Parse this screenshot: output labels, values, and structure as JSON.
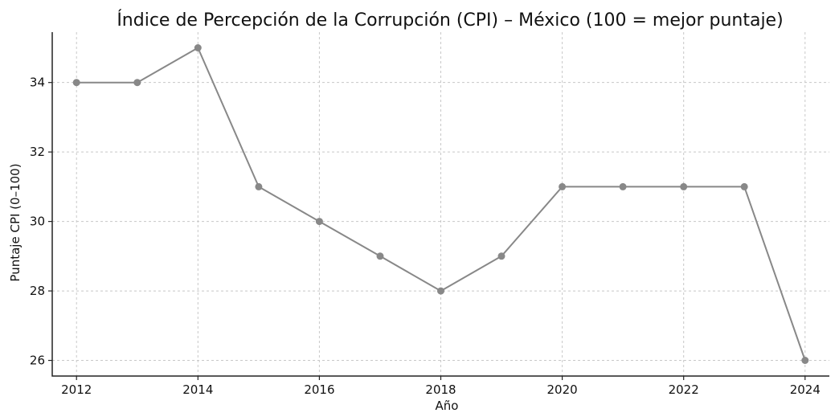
{
  "chart_data": {
    "type": "line",
    "title": "Índice de Percepción de la Corrupción (CPI) – México (100 = mejor puntaje)",
    "xlabel": "Año",
    "ylabel": "Puntaje CPI (0–100)",
    "x": [
      2012,
      2013,
      2014,
      2015,
      2016,
      2017,
      2018,
      2019,
      2020,
      2021,
      2022,
      2023,
      2024
    ],
    "series": [
      {
        "values": [
          34,
          34,
          35,
          31,
          30,
          29,
          28,
          29,
          31,
          31,
          31,
          31,
          26
        ]
      }
    ],
    "xlim": [
      2011.6,
      2024.4
    ],
    "ylim": [
      25.55,
      35.45
    ],
    "xticks": [
      2012,
      2014,
      2016,
      2018,
      2020,
      2022,
      2024
    ],
    "yticks": [
      26,
      28,
      30,
      32,
      34
    ],
    "grid": true,
    "colors": {
      "line": "#888888",
      "marker": "#888888"
    }
  }
}
